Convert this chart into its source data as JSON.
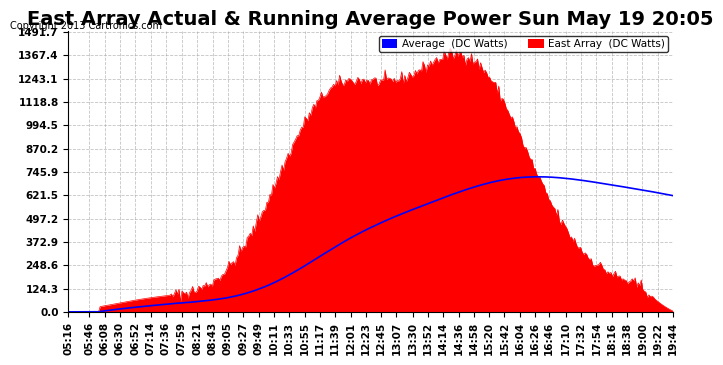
{
  "title": "East Array Actual & Running Average Power Sun May 19 20:05",
  "copyright": "Copyright 2013 Cartronics.com",
  "yticks": [
    0.0,
    124.3,
    248.6,
    372.9,
    497.2,
    621.5,
    745.9,
    870.2,
    994.5,
    1118.8,
    1243.1,
    1367.4,
    1491.7
  ],
  "ymax": 1491.7,
  "ymin": 0.0,
  "xtick_labels": [
    "05:16",
    "05:46",
    "06:08",
    "06:30",
    "06:52",
    "07:14",
    "07:36",
    "07:59",
    "08:21",
    "08:43",
    "09:05",
    "09:27",
    "09:49",
    "10:11",
    "10:33",
    "10:55",
    "11:17",
    "11:39",
    "12:01",
    "12:23",
    "12:45",
    "13:07",
    "13:30",
    "13:52",
    "14:14",
    "14:36",
    "14:58",
    "15:20",
    "15:42",
    "16:04",
    "16:26",
    "16:46",
    "17:10",
    "17:32",
    "17:54",
    "18:16",
    "18:38",
    "19:00",
    "19:22",
    "19:44"
  ],
  "background_color": "#ffffff",
  "plot_bg_color": "#ffffff",
  "grid_color": "#aaaaaa",
  "area_color": "#ff0000",
  "line_color": "#0000ff",
  "title_fontsize": 14,
  "tick_fontsize": 7.5,
  "legend_blue_label": "Average  (DC Watts)",
  "legend_red_label": "East Array  (DC Watts)"
}
